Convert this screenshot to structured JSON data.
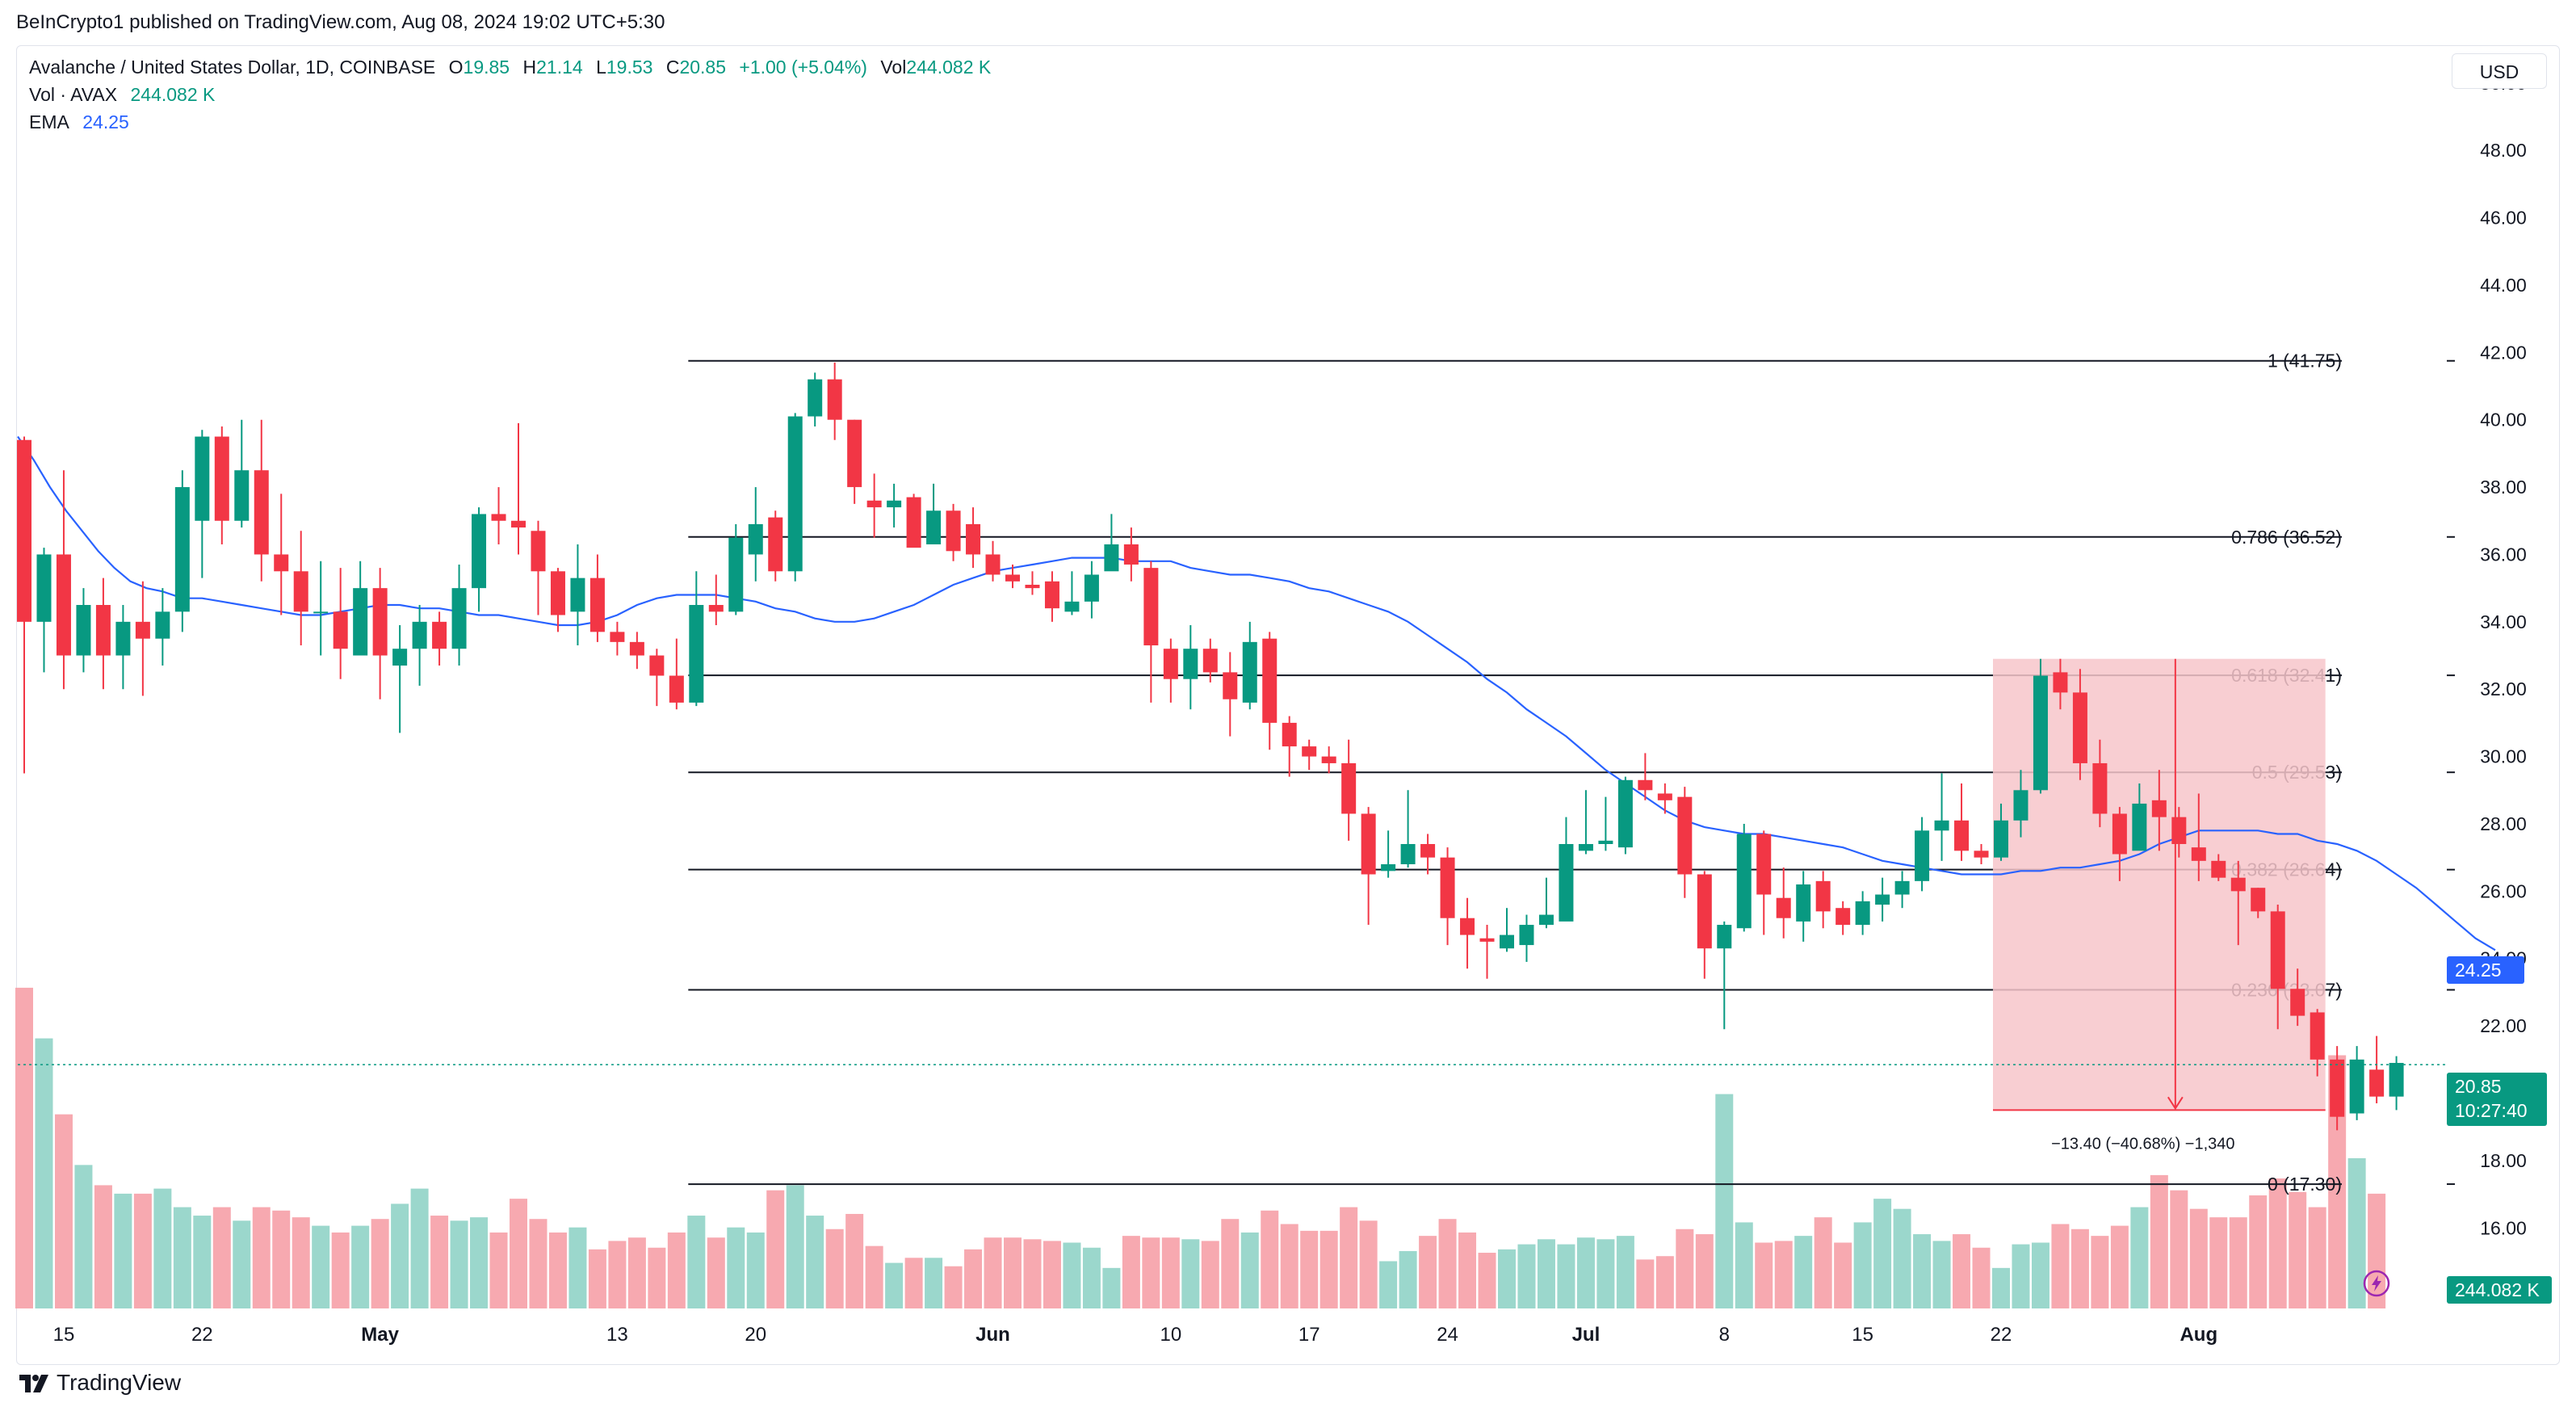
{
  "publisher": "BeInCrypto1 published on TradingView.com, Aug 08, 2024 19:02 UTC+5:30",
  "legend": {
    "symbol": "Avalanche / United States Dollar, 1D, COINBASE",
    "o_label": "O",
    "o_value": "19.85",
    "h_label": "H",
    "h_value": "21.14",
    "l_label": "L",
    "l_value": "19.53",
    "c_label": "C",
    "c_value": "20.85",
    "change": "+1.00 (+5.04%)",
    "vol_label": "Vol",
    "vol_value": "244.082 K",
    "vol_series_label": "Vol · AVAX",
    "vol_series_value": "244.082 K",
    "ema_label": "EMA",
    "ema_value": "24.25"
  },
  "currency_button": "USD",
  "brand": "TradingView",
  "price_badge": {
    "price": "20.85",
    "countdown": "10:27:40"
  },
  "ema_badge": "24.25",
  "volume_badge": "244.082 K",
  "colors": {
    "up": "#089981",
    "down": "#f23645",
    "ema": "#2962ff",
    "up_vol": "#9bd7cc",
    "down_vol": "#f7a9b0",
    "fib": "#131722",
    "measure_fill": "#f7c5ca"
  },
  "chart_data": {
    "type": "candlestick",
    "ylim": [
      14.5,
      51
    ],
    "y_ticks": [
      "16.00",
      "18.00",
      "20.00",
      "22.00",
      "24.00",
      "26.00",
      "28.00",
      "30.00",
      "32.00",
      "34.00",
      "36.00",
      "38.00",
      "40.00",
      "42.00",
      "44.00",
      "46.00",
      "48.00",
      "50.00"
    ],
    "x_ticks": [
      {
        "label": "15",
        "bar": 2
      },
      {
        "label": "22",
        "bar": 9
      },
      {
        "label": "May",
        "bar": 18
      },
      {
        "label": "13",
        "bar": 30
      },
      {
        "label": "20",
        "bar": 37
      },
      {
        "label": "Jun",
        "bar": 49
      },
      {
        "label": "10",
        "bar": 58
      },
      {
        "label": "17",
        "bar": 65
      },
      {
        "label": "24",
        "bar": 72
      },
      {
        "label": "Jul",
        "bar": 79
      },
      {
        "label": "8",
        "bar": 86
      },
      {
        "label": "15",
        "bar": 93
      },
      {
        "label": "22",
        "bar": 100
      },
      {
        "label": "Aug",
        "bar": 110
      }
    ],
    "candles": [
      [
        39.4,
        34.0,
        29.5,
        39.5
      ],
      [
        34.0,
        36.0,
        32.5,
        36.2
      ],
      [
        36.0,
        33.0,
        32.0,
        38.5
      ],
      [
        33.0,
        34.5,
        32.5,
        35.0
      ],
      [
        34.5,
        33.0,
        32.0,
        35.3
      ],
      [
        33.0,
        34.0,
        32.0,
        34.5
      ],
      [
        34.0,
        33.5,
        31.8,
        35.2
      ],
      [
        33.5,
        34.3,
        32.7,
        35.0
      ],
      [
        34.3,
        38.0,
        33.7,
        38.5
      ],
      [
        37.0,
        39.5,
        35.3,
        39.7
      ],
      [
        39.5,
        37.0,
        36.3,
        39.8
      ],
      [
        37.0,
        38.5,
        36.8,
        40.0
      ],
      [
        38.5,
        36.0,
        35.2,
        40.0
      ],
      [
        36.0,
        35.5,
        34.2,
        37.8
      ],
      [
        35.5,
        34.3,
        33.3,
        36.7
      ],
      [
        34.3,
        34.3,
        33.0,
        35.8
      ],
      [
        34.3,
        33.2,
        32.3,
        35.6
      ],
      [
        33.0,
        35.0,
        33.0,
        35.8
      ],
      [
        35.0,
        33.0,
        31.7,
        35.6
      ],
      [
        32.7,
        33.2,
        30.7,
        33.9
      ],
      [
        33.2,
        34.0,
        32.1,
        34.5
      ],
      [
        34.0,
        33.2,
        32.7,
        34.3
      ],
      [
        33.2,
        35.0,
        32.7,
        35.7
      ],
      [
        35.0,
        37.2,
        34.3,
        37.4
      ],
      [
        37.2,
        37.0,
        36.3,
        38.0
      ],
      [
        37.0,
        36.8,
        36.0,
        39.9
      ],
      [
        36.7,
        35.5,
        34.2,
        37.0
      ],
      [
        35.5,
        34.2,
        33.7,
        35.6
      ],
      [
        34.3,
        35.3,
        33.3,
        36.3
      ],
      [
        35.3,
        33.7,
        33.4,
        36.0
      ],
      [
        33.7,
        33.4,
        33.0,
        34.0
      ],
      [
        33.4,
        33.0,
        32.6,
        33.7
      ],
      [
        33.0,
        32.4,
        31.5,
        33.2
      ],
      [
        32.4,
        31.6,
        31.4,
        33.5
      ],
      [
        31.6,
        34.5,
        31.5,
        35.5
      ],
      [
        34.5,
        34.3,
        33.9,
        35.4
      ],
      [
        34.3,
        36.5,
        34.2,
        36.9
      ],
      [
        36.0,
        36.9,
        35.2,
        38.0
      ],
      [
        37.1,
        35.5,
        35.2,
        37.3
      ],
      [
        35.5,
        40.1,
        35.2,
        40.2
      ],
      [
        40.1,
        41.2,
        39.8,
        41.4
      ],
      [
        41.2,
        40.0,
        39.4,
        41.7
      ],
      [
        40.0,
        38.0,
        37.5,
        40.0
      ],
      [
        37.6,
        37.4,
        36.5,
        38.4
      ],
      [
        37.4,
        37.6,
        36.8,
        38.1
      ],
      [
        37.7,
        36.2,
        36.4,
        37.8
      ],
      [
        36.3,
        37.3,
        36.5,
        38.1
      ],
      [
        37.3,
        36.1,
        35.8,
        37.5
      ],
      [
        36.9,
        36.0,
        35.6,
        37.4
      ],
      [
        36.0,
        35.4,
        35.2,
        36.4
      ],
      [
        35.4,
        35.2,
        35.0,
        35.7
      ],
      [
        35.1,
        35.0,
        34.8,
        35.5
      ],
      [
        35.2,
        34.4,
        34.0,
        35.5
      ],
      [
        34.3,
        34.6,
        34.2,
        35.5
      ],
      [
        34.6,
        35.4,
        34.1,
        35.8
      ],
      [
        35.5,
        36.3,
        35.6,
        37.2
      ],
      [
        36.3,
        35.7,
        35.2,
        36.8
      ],
      [
        35.6,
        33.3,
        31.6,
        35.8
      ],
      [
        33.2,
        32.3,
        31.6,
        33.5
      ],
      [
        32.3,
        33.2,
        31.4,
        33.9
      ],
      [
        33.2,
        32.5,
        32.2,
        33.5
      ],
      [
        32.5,
        31.7,
        30.6,
        33.1
      ],
      [
        31.6,
        33.4,
        31.4,
        34.0
      ],
      [
        33.5,
        31.0,
        30.2,
        33.7
      ],
      [
        31.0,
        30.3,
        29.4,
        31.2
      ],
      [
        30.3,
        30.0,
        29.6,
        30.5
      ],
      [
        30.0,
        29.8,
        29.5,
        30.3
      ],
      [
        29.8,
        28.3,
        27.5,
        30.5
      ],
      [
        28.3,
        26.5,
        25.0,
        28.5
      ],
      [
        26.6,
        26.8,
        26.4,
        27.8
      ],
      [
        26.8,
        27.4,
        26.7,
        29.0
      ],
      [
        27.4,
        27.0,
        26.5,
        27.7
      ],
      [
        27.0,
        25.2,
        24.4,
        27.3
      ],
      [
        25.2,
        24.7,
        23.7,
        25.8
      ],
      [
        24.6,
        24.5,
        23.4,
        25.0
      ],
      [
        24.3,
        24.7,
        24.2,
        25.5
      ],
      [
        24.4,
        25.0,
        23.9,
        25.3
      ],
      [
        25.0,
        25.3,
        24.9,
        26.4
      ],
      [
        25.1,
        27.4,
        25.2,
        28.2
      ],
      [
        27.2,
        27.4,
        27.1,
        29.0
      ],
      [
        27.4,
        27.5,
        27.2,
        28.8
      ],
      [
        27.3,
        29.3,
        27.1,
        29.4
      ],
      [
        29.3,
        29.0,
        28.7,
        30.1
      ],
      [
        28.9,
        28.7,
        28.3,
        29.2
      ],
      [
        28.8,
        26.5,
        25.8,
        29.1
      ],
      [
        26.5,
        24.3,
        23.4,
        26.6
      ],
      [
        24.3,
        25.0,
        21.9,
        25.1
      ],
      [
        24.9,
        27.7,
        24.8,
        28.0
      ],
      [
        27.7,
        25.9,
        24.7,
        27.8
      ],
      [
        25.8,
        25.2,
        24.6,
        26.7
      ],
      [
        25.1,
        26.2,
        24.5,
        26.6
      ],
      [
        26.3,
        25.4,
        24.9,
        26.6
      ],
      [
        25.5,
        25.0,
        24.7,
        25.7
      ],
      [
        25.0,
        25.7,
        24.7,
        26.0
      ],
      [
        25.6,
        25.9,
        25.1,
        26.4
      ],
      [
        25.9,
        26.3,
        25.5,
        26.6
      ],
      [
        26.3,
        27.8,
        26.0,
        28.2
      ],
      [
        27.8,
        28.1,
        26.9,
        29.5
      ],
      [
        28.1,
        27.2,
        26.9,
        29.2
      ],
      [
        27.2,
        27.0,
        26.8,
        27.4
      ],
      [
        27.0,
        28.1,
        26.9,
        28.6
      ],
      [
        28.1,
        29.0,
        27.6,
        29.6
      ],
      [
        29.0,
        32.4,
        28.9,
        32.9
      ],
      [
        32.5,
        31.9,
        31.4,
        32.9
      ],
      [
        31.9,
        29.8,
        29.3,
        32.6
      ],
      [
        29.8,
        28.3,
        27.9,
        30.5
      ],
      [
        28.3,
        27.1,
        26.3,
        28.5
      ],
      [
        27.2,
        28.6,
        27.3,
        29.2
      ],
      [
        28.7,
        28.2,
        27.2,
        29.6
      ],
      [
        28.2,
        27.4,
        27.0,
        28.5
      ],
      [
        27.3,
        26.9,
        26.3,
        28.9
      ],
      [
        26.9,
        26.4,
        26.3,
        27.1
      ],
      [
        26.4,
        26.0,
        24.4,
        26.9
      ],
      [
        26.1,
        25.4,
        25.2,
        26.1
      ],
      [
        25.4,
        23.1,
        21.9,
        25.6
      ],
      [
        23.1,
        22.3,
        22.0,
        23.7
      ],
      [
        22.4,
        21.0,
        20.5,
        22.5
      ],
      [
        21.0,
        19.3,
        18.9,
        21.4
      ],
      [
        19.4,
        21.0,
        19.2,
        21.4
      ],
      [
        20.7,
        19.9,
        19.7,
        21.7
      ],
      [
        19.9,
        20.9,
        19.5,
        21.1
      ]
    ],
    "volumes": [
      1.9,
      1.6,
      1.15,
      0.85,
      0.73,
      0.68,
      0.68,
      0.71,
      0.6,
      0.55,
      0.6,
      0.52,
      0.6,
      0.58,
      0.54,
      0.49,
      0.45,
      0.49,
      0.53,
      0.62,
      0.71,
      0.55,
      0.52,
      0.54,
      0.45,
      0.65,
      0.53,
      0.45,
      0.48,
      0.35,
      0.4,
      0.42,
      0.36,
      0.45,
      0.55,
      0.42,
      0.48,
      0.45,
      0.7,
      0.73,
      0.55,
      0.47,
      0.56,
      0.37,
      0.27,
      0.3,
      0.3,
      0.25,
      0.35,
      0.42,
      0.42,
      0.41,
      0.4,
      0.39,
      0.36,
      0.24,
      0.43,
      0.42,
      0.42,
      0.41,
      0.4,
      0.53,
      0.45,
      0.58,
      0.5,
      0.46,
      0.46,
      0.6,
      0.52,
      0.28,
      0.34,
      0.43,
      0.53,
      0.45,
      0.33,
      0.35,
      0.38,
      0.41,
      0.38,
      0.42,
      0.41,
      0.43,
      0.29,
      0.31,
      0.47,
      0.44,
      1.27,
      0.51,
      0.39,
      0.4,
      0.43,
      0.54,
      0.39,
      0.51,
      0.65,
      0.59,
      0.44,
      0.4,
      0.44,
      0.36,
      0.24,
      0.38,
      0.39,
      0.5,
      0.47,
      0.43,
      0.49,
      0.6,
      0.79,
      0.7,
      0.59,
      0.54,
      0.54,
      0.67,
      0.77,
      0.69,
      0.6,
      1.5,
      0.89,
      0.68
    ],
    "ema": [
      34.9,
      34.7,
      34.7,
      34.6,
      34.5,
      34.4,
      34.3,
      34.2,
      34.2,
      34.3,
      34.4,
      34.5,
      34.5,
      34.4,
      34.4,
      34.3,
      34.2,
      34.2,
      34.1,
      34.0,
      33.9,
      33.9,
      34.0,
      34.2,
      34.5,
      34.7,
      34.8,
      34.8,
      34.8,
      34.7,
      34.6,
      34.4,
      34.3,
      34.1,
      34.0,
      34.0,
      34.1,
      34.3,
      34.5,
      34.8,
      35.1,
      35.3,
      35.5,
      35.6,
      35.7,
      35.8,
      35.9,
      35.9,
      35.9,
      35.8,
      35.8,
      35.8,
      35.6,
      35.5,
      35.4,
      35.4,
      35.3,
      35.2,
      35.0,
      34.9,
      34.7,
      34.5,
      34.3,
      34.0,
      33.6,
      33.2,
      32.8,
      32.3,
      31.9,
      31.4,
      31.0,
      30.6,
      30.1,
      29.6,
      29.2,
      28.8,
      28.4,
      28.1,
      27.9,
      27.8,
      27.7,
      27.7,
      27.6,
      27.5,
      27.4,
      27.3,
      27.1,
      26.9,
      26.8,
      26.7,
      26.6,
      26.5,
      26.5,
      26.5,
      26.6,
      26.6,
      26.7,
      26.7,
      26.8,
      26.9,
      27.1,
      27.4,
      27.6,
      27.8,
      27.8,
      27.8,
      27.8,
      27.7,
      27.7,
      27.5,
      27.4,
      27.2,
      26.9,
      26.5,
      26.1,
      25.6,
      25.1,
      24.6,
      24.25
    ],
    "ema_pre": [
      39.5,
      38.8,
      38.0,
      37.3,
      36.7,
      36.1,
      35.6,
      35.2,
      35.0
    ],
    "fibonacci": [
      {
        "label": "1 (41.75)",
        "value": 41.75
      },
      {
        "label": "0.786 (36.52)",
        "value": 36.52
      },
      {
        "label": "0.618 (32.41)",
        "value": 32.41
      },
      {
        "label": "0.5 (29.53)",
        "value": 29.53
      },
      {
        "label": "0.382 (26.64)",
        "value": 26.64
      },
      {
        "label": "0.236 (23.07)",
        "value": 23.07
      },
      {
        "label": "0 (17.30)",
        "value": 17.3
      }
    ],
    "fib_start_bar": 34,
    "measurement": {
      "start_bar": 100,
      "end_bar": 116,
      "from": 32.9,
      "to": 19.5,
      "label": "−13.40 (−40.68%) −1,340"
    },
    "last_price": 20.85
  }
}
